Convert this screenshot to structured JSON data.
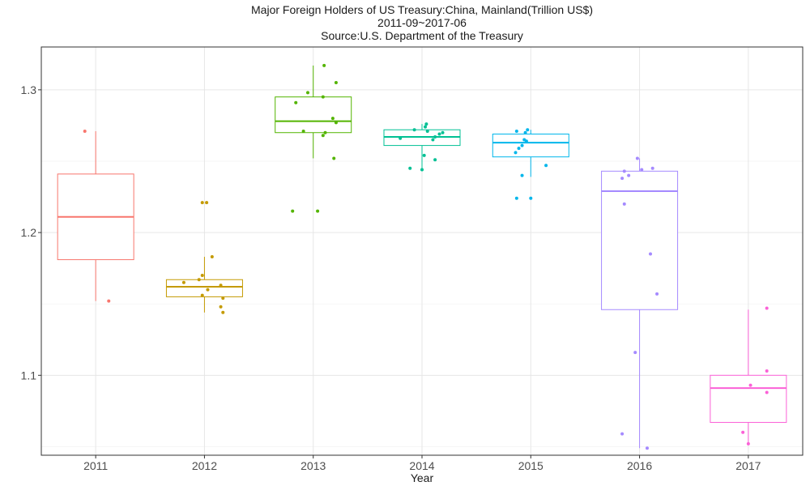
{
  "chart_data": {
    "type": "boxplot",
    "title": "Major Foreign Holders of US Treasury:China, Mainland(Trillion US$)",
    "subtitle": "2011-09~2017-06",
    "source": "Source:U.S. Department of the Treasury",
    "xlabel": "Year",
    "ylabel": "",
    "ylim": [
      1.044,
      1.33
    ],
    "yticks": [
      1.1,
      1.2,
      1.3
    ],
    "ytick_labels": [
      "1.1",
      "1.2",
      "1.3"
    ],
    "grid": true,
    "legend": "none",
    "categories": [
      "2011",
      "2012",
      "2013",
      "2014",
      "2015",
      "2016",
      "2017"
    ],
    "colors": [
      "#F8766D",
      "#C49A00",
      "#53B400",
      "#00C094",
      "#00B6EB",
      "#A58AFF",
      "#FB61D7"
    ],
    "boxes": [
      {
        "year": "2011",
        "whisker_low": 1.152,
        "q1": 1.181,
        "median": 1.211,
        "q3": 1.241,
        "whisker_high": 1.271
      },
      {
        "year": "2012",
        "whisker_low": 1.144,
        "q1": 1.155,
        "median": 1.162,
        "q3": 1.167,
        "whisker_high": 1.183
      },
      {
        "year": "2013",
        "whisker_low": 1.252,
        "q1": 1.27,
        "median": 1.278,
        "q3": 1.295,
        "whisker_high": 1.317
      },
      {
        "year": "2014",
        "whisker_low": 1.244,
        "q1": 1.261,
        "median": 1.267,
        "q3": 1.272,
        "whisker_high": 1.276
      },
      {
        "year": "2015",
        "whisker_low": 1.239,
        "q1": 1.253,
        "median": 1.263,
        "q3": 1.269,
        "whisker_high": 1.272
      },
      {
        "year": "2016",
        "whisker_low": 1.049,
        "q1": 1.146,
        "median": 1.229,
        "q3": 1.243,
        "whisker_high": 1.252
      },
      {
        "year": "2017",
        "whisker_low": 1.051,
        "q1": 1.067,
        "median": 1.091,
        "q3": 1.1,
        "whisker_high": 1.146
      }
    ],
    "points": [
      {
        "year": "2011",
        "values": [
          1.271,
          1.152
        ],
        "jitter": [
          -0.1,
          0.12
        ]
      },
      {
        "year": "2012",
        "values": [
          1.221,
          1.221,
          1.183,
          1.17,
          1.167,
          1.165,
          1.163,
          1.16,
          1.156,
          1.154,
          1.148,
          1.144
        ],
        "jitter": [
          -0.02,
          0.02,
          0.07,
          -0.02,
          -0.05,
          -0.19,
          0.15,
          0.03,
          -0.02,
          0.17,
          0.15,
          0.17
        ]
      },
      {
        "year": "2013",
        "values": [
          1.317,
          1.305,
          1.298,
          1.295,
          1.291,
          1.28,
          1.277,
          1.271,
          1.27,
          1.268,
          1.252,
          1.215,
          1.215
        ],
        "jitter": [
          0.1,
          0.21,
          -0.05,
          0.09,
          -0.16,
          0.18,
          0.21,
          -0.09,
          0.11,
          0.09,
          0.19,
          -0.19,
          0.04
        ]
      },
      {
        "year": "2014",
        "values": [
          1.276,
          1.274,
          1.272,
          1.271,
          1.27,
          1.269,
          1.267,
          1.266,
          1.265,
          1.254,
          1.251,
          1.245,
          1.244
        ],
        "jitter": [
          0.04,
          0.03,
          -0.07,
          0.05,
          0.19,
          0.16,
          0.12,
          -0.2,
          0.1,
          0.02,
          0.12,
          -0.11,
          0.0
        ]
      },
      {
        "year": "2015",
        "values": [
          1.272,
          1.271,
          1.27,
          1.265,
          1.264,
          1.261,
          1.259,
          1.256,
          1.247,
          1.24,
          1.224,
          1.224
        ],
        "jitter": [
          -0.03,
          -0.13,
          -0.05,
          -0.06,
          -0.04,
          -0.08,
          -0.11,
          -0.14,
          0.14,
          -0.08,
          -0.13,
          0.0
        ]
      },
      {
        "year": "2016",
        "values": [
          1.252,
          1.245,
          1.244,
          1.243,
          1.24,
          1.238,
          1.22,
          1.185,
          1.157,
          1.116,
          1.059,
          1.049
        ],
        "jitter": [
          -0.02,
          0.12,
          0.02,
          -0.14,
          -0.1,
          -0.16,
          -0.14,
          0.1,
          0.16,
          -0.04,
          -0.16,
          0.07
        ]
      },
      {
        "year": "2017",
        "values": [
          1.147,
          1.103,
          1.093,
          1.088,
          1.06,
          1.052
        ],
        "jitter": [
          0.17,
          0.17,
          0.02,
          0.17,
          -0.05,
          0.0
        ]
      }
    ]
  }
}
